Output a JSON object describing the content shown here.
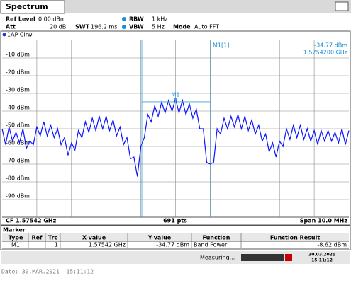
{
  "header": {
    "tab": "Spectrum",
    "ref_level_label": "Ref Level",
    "ref_level": "0.00 dBm",
    "att_label": "Att",
    "att": "20 dB",
    "swt_label": "SWT",
    "swt": "196.2 ms",
    "rbw_label": "RBW",
    "rbw": "1 kHz",
    "vbw_label": "VBW",
    "vbw": "5 Hz",
    "mode_label": "Mode",
    "mode": "Auto FFT"
  },
  "chart_data": {
    "type": "line",
    "trace_label": "1AP Clrw",
    "x": [
      1.57042,
      1.57052,
      1.57062,
      1.57072,
      1.57082,
      1.57092,
      1.57102,
      1.57112,
      1.57122,
      1.57132,
      1.57142,
      1.57152,
      1.57162,
      1.57172,
      1.57182,
      1.57192,
      1.57202,
      1.57212,
      1.57222,
      1.57232,
      1.57242,
      1.57252,
      1.57262,
      1.57272,
      1.57282,
      1.57292,
      1.57302,
      1.57312,
      1.57322,
      1.57332,
      1.57342,
      1.57352,
      1.57362,
      1.57372,
      1.57382,
      1.57392,
      1.57402,
      1.57412,
      1.57422,
      1.57432,
      1.57442,
      1.57452,
      1.57462,
      1.57472,
      1.57482,
      1.57492,
      1.57502,
      1.57512,
      1.57522,
      1.57532,
      1.57542,
      1.57552,
      1.57562,
      1.57572,
      1.57582,
      1.57592,
      1.57602,
      1.57612,
      1.57622,
      1.57632,
      1.57642,
      1.57652,
      1.57662,
      1.57672,
      1.57682,
      1.57692,
      1.57702,
      1.57712,
      1.57722,
      1.57732,
      1.57742,
      1.57752,
      1.57762,
      1.57772,
      1.57782,
      1.57792,
      1.57802,
      1.57812,
      1.57822,
      1.57832,
      1.57842,
      1.57852,
      1.57862,
      1.57872,
      1.57882,
      1.57892,
      1.57902,
      1.57912,
      1.57922,
      1.57932,
      1.57942,
      1.57952,
      1.57962,
      1.57972,
      1.57982,
      1.57992,
      1.58002,
      1.58012,
      1.58022,
      1.58032,
      1.58042
    ],
    "series": [
      {
        "name": "1AP Clrw",
        "color": "#0a14ff",
        "values": [
          -50,
          -59,
          -49,
          -57,
          -52,
          -58,
          -50,
          -61,
          -57,
          -59,
          -49,
          -54,
          -46,
          -54,
          -48,
          -55,
          -50,
          -59,
          -55,
          -65,
          -58,
          -62,
          -51,
          -55,
          -46,
          -52,
          -44,
          -51,
          -43,
          -50,
          -43,
          -51,
          -45,
          -54,
          -49,
          -59,
          -55,
          -67,
          -66,
          -77,
          -60,
          -55,
          -42,
          -46,
          -37,
          -43,
          -35,
          -41,
          -34,
          -40,
          -33,
          -41,
          -34,
          -42,
          -36,
          -44,
          -39,
          -50,
          -50,
          -69,
          -70,
          -69,
          -50,
          -53,
          -44,
          -50,
          -43,
          -49,
          -42,
          -50,
          -43,
          -51,
          -45,
          -53,
          -48,
          -57,
          -53,
          -63,
          -58,
          -66,
          -57,
          -60,
          -50,
          -56,
          -48,
          -55,
          -48,
          -56,
          -50,
          -57,
          -51,
          -59,
          -51,
          -57,
          -51,
          -57,
          -52,
          -58,
          -50,
          -59,
          -51
        ]
      }
    ],
    "xlim": [
      1.57042,
      1.58042
    ],
    "ylim": [
      -100,
      0
    ],
    "yticks": [
      {
        "value": -10,
        "label": "-10 dBm"
      },
      {
        "value": -20,
        "label": "-20 dBm"
      },
      {
        "value": -30,
        "label": "-30 dBm"
      },
      {
        "value": -40,
        "label": "-40 dBm"
      },
      {
        "value": -50,
        "label": "-50 dBm"
      },
      {
        "value": -60,
        "label": "-60 dBm"
      },
      {
        "value": -70,
        "label": "-70 dBm"
      },
      {
        "value": -80,
        "label": "-80 dBm"
      },
      {
        "value": -90,
        "label": "-90 dBm"
      }
    ],
    "grid": true,
    "marker": {
      "name": "M1",
      "x": 1.57542,
      "y": -34.77
    },
    "marker_label": "M1[1]",
    "marker_readout_y": "-34.77 dBm",
    "marker_readout_x": "1.5754200 GHz",
    "footer_left": "CF 1.57542 GHz",
    "footer_center": "691 pts",
    "footer_right": "Span 10.0 MHz"
  },
  "marker_table": {
    "title": "Marker",
    "columns": [
      "Type",
      "Ref",
      "Trc",
      "X-value",
      "Y-value",
      "Function",
      "Function Result"
    ],
    "rows": [
      {
        "type": "M1",
        "trc": 1,
        "x": "1.57542 GHz",
        "y": "-34.77 dBm",
        "function": "Band Power",
        "result": "-8.62 dBm"
      }
    ]
  },
  "status": {
    "text": "Measuring...",
    "date": "30.03.2021",
    "time": "15:11:12"
  },
  "footer": "Date: 30.MAR.2021  15:11:12"
}
